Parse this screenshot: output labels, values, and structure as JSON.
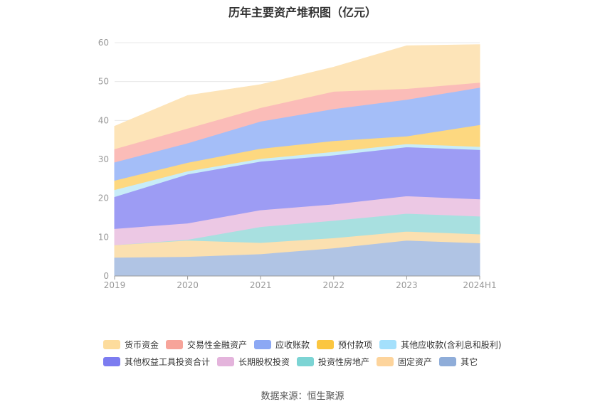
{
  "chart_data": {
    "type": "area",
    "stacked": true,
    "title": "历年主要资产堆积图（亿元）",
    "categories": [
      "2019",
      "2020",
      "2021",
      "2022",
      "2023",
      "2024H1"
    ],
    "ylim": [
      0,
      60
    ],
    "yticks": [
      0,
      10,
      20,
      30,
      40,
      50,
      60
    ],
    "grid": true,
    "legend_position": "bottom",
    "series": [
      {
        "name": "其它",
        "color": "#b0c4e4",
        "values": [
          4.8,
          5.0,
          5.7,
          7.2,
          9.2,
          8.5
        ]
      },
      {
        "name": "固定资产",
        "color": "#fbe0b0",
        "values": [
          3.2,
          4.2,
          2.9,
          2.6,
          2.3,
          2.3
        ]
      },
      {
        "name": "投资性房地产",
        "color": "#a8e0e0",
        "values": [
          0.0,
          0.2,
          4.1,
          4.5,
          4.6,
          4.6
        ]
      },
      {
        "name": "长期股权投资",
        "color": "#ecc8e4",
        "values": [
          4.2,
          4.2,
          4.3,
          4.2,
          4.5,
          4.4
        ]
      },
      {
        "name": "其他权益工具投资合计",
        "color": "#9d9cf4",
        "values": [
          8.2,
          12.6,
          12.5,
          12.6,
          12.6,
          12.7
        ]
      },
      {
        "name": "其他应收款(含利息和股利)",
        "color": "#c8ecf8",
        "values": [
          1.8,
          0.8,
          0.7,
          0.9,
          0.8,
          0.8
        ]
      },
      {
        "name": "预付款项",
        "color": "#fdd880",
        "values": [
          2.4,
          2.2,
          2.6,
          2.8,
          2.0,
          5.6
        ]
      },
      {
        "name": "应收账款",
        "color": "#a4bef8",
        "values": [
          4.7,
          5.0,
          7.0,
          8.2,
          9.4,
          9.6
        ]
      },
      {
        "name": "交易性金融资产",
        "color": "#fbbcb8",
        "values": [
          3.4,
          3.8,
          3.5,
          4.5,
          2.8,
          1.3
        ]
      },
      {
        "name": "货币资金",
        "color": "#fde4b8",
        "values": [
          5.8,
          8.4,
          5.9,
          6.2,
          11.0,
          9.7
        ]
      }
    ],
    "legend": [
      [
        {
          "name": "货币资金",
          "color": "#fddc9c"
        },
        {
          "name": "交易性金融资产",
          "color": "#f7a49a"
        },
        {
          "name": "应收账款",
          "color": "#8ca8f4"
        },
        {
          "name": "预付款项",
          "color": "#fbc640"
        },
        {
          "name": "其他应收款(含利息和股利)",
          "color": "#a4e0fc"
        }
      ],
      [
        {
          "name": "其他权益工具投资合计",
          "color": "#7c7cf0"
        },
        {
          "name": "长期股权投资",
          "color": "#e4b4dc"
        },
        {
          "name": "投资性房地产",
          "color": "#7cd4d4"
        },
        {
          "name": "固定资产",
          "color": "#fdd49c"
        },
        {
          "name": "其它",
          "color": "#8fadd9"
        }
      ]
    ]
  },
  "source_text": "数据来源：恒生聚源"
}
